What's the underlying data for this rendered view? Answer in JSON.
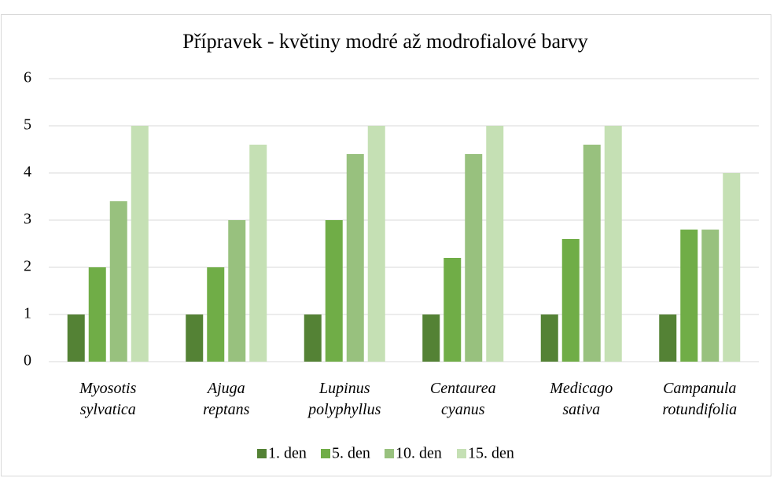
{
  "chart_data": {
    "type": "bar",
    "title": "Přípravek - květiny modré až modrofialové barvy",
    "categories": [
      "Myosotis sylvatica",
      "Ajuga reptans",
      "Lupinus polyphyllus",
      "Centaurea cyanus",
      "Medicago sativa",
      "Campanula rotundifolia"
    ],
    "series": [
      {
        "name": "1. den",
        "color": "#548235",
        "values": [
          1,
          1,
          1,
          1,
          1,
          1
        ]
      },
      {
        "name": "5. den",
        "color": "#70ad47",
        "values": [
          2,
          2,
          3,
          2.2,
          2.6,
          2.8
        ]
      },
      {
        "name": "10. den",
        "color": "#98c17e",
        "values": [
          3.4,
          3,
          4.4,
          4.4,
          4.6,
          2.8
        ]
      },
      {
        "name": "15. den",
        "color": "#c5e0b4",
        "values": [
          5,
          4.6,
          5,
          5,
          5,
          4
        ]
      }
    ],
    "ylim": [
      0,
      6
    ],
    "yticks": [
      0,
      1,
      2,
      3,
      4,
      5,
      6
    ],
    "grid": true,
    "legend": "bottom"
  }
}
